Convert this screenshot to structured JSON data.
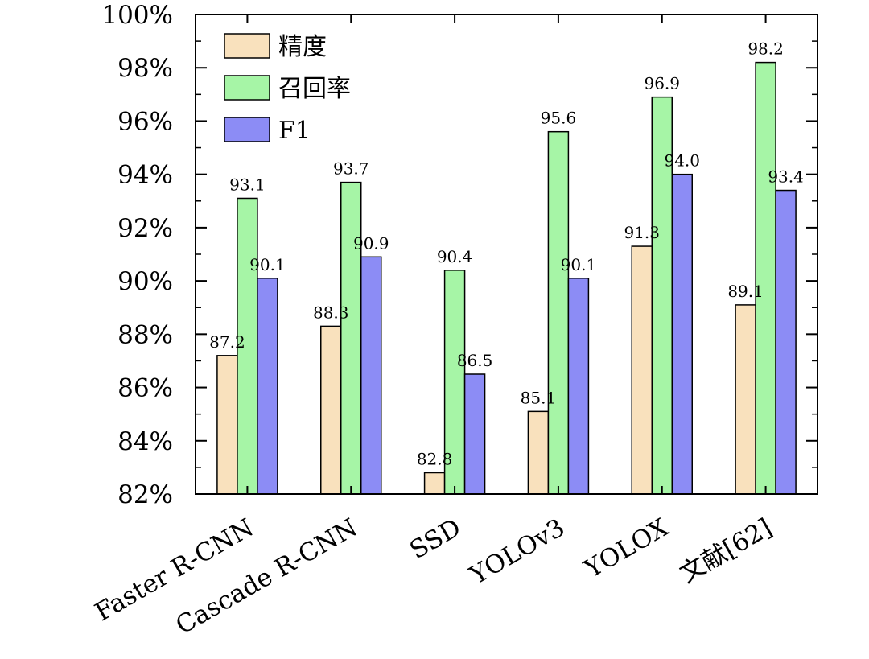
{
  "chart_data": {
    "type": "bar",
    "categories": [
      "Faster R-CNN",
      "Cascade R-CNN",
      "SSD",
      "YOLOv3",
      "YOLOX",
      "文献[62]"
    ],
    "series": [
      {
        "name": "精度",
        "values": [
          87.2,
          88.3,
          82.8,
          85.1,
          91.3,
          89.1
        ],
        "color": "#f9e1bd"
      },
      {
        "name": "召回率",
        "values": [
          93.1,
          93.7,
          90.4,
          95.6,
          96.9,
          98.2
        ],
        "color": "#a6f5a6"
      },
      {
        "name": "F1",
        "values": [
          90.1,
          90.9,
          86.5,
          90.1,
          94.0,
          93.4
        ],
        "color": "#8c8cf5"
      }
    ],
    "ylim": [
      82,
      100
    ],
    "yticks": [
      82,
      84,
      86,
      88,
      90,
      92,
      94,
      96,
      98,
      100
    ],
    "ytick_labels": [
      "82%",
      "84%",
      "86%",
      "88%",
      "90%",
      "92%",
      "94%",
      "96%",
      "98%",
      "100%"
    ],
    "data_labels": [
      [
        "87.2",
        "88.3",
        "82.8",
        "85.1",
        "91.3",
        "89.1"
      ],
      [
        "93.1",
        "93.7",
        "90.4",
        "95.6",
        "96.9",
        "98.2"
      ],
      [
        "90.1",
        "90.9",
        "86.5",
        "90.1",
        "94.0",
        "93.4"
      ]
    ],
    "xlabel": "",
    "ylabel": "",
    "legend_position": "top-left",
    "grid": false
  }
}
